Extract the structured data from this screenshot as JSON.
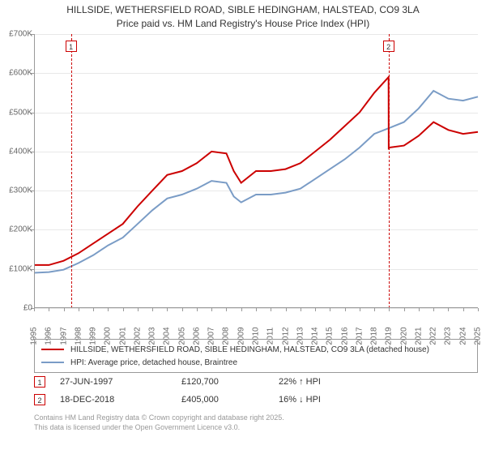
{
  "title": {
    "line1": "HILLSIDE, WETHERSFIELD ROAD, SIBLE HEDINGHAM, HALSTEAD, CO9 3LA",
    "line2": "Price paid vs. HM Land Registry's House Price Index (HPI)"
  },
  "chart": {
    "type": "line",
    "background_color": "#ffffff",
    "grid_color": "#e8e8e8",
    "axis_color": "#999999",
    "label_color": "#666666",
    "label_fontsize": 10,
    "ylim": [
      0,
      700000
    ],
    "ytick_step": 100000,
    "yticks": [
      "£0",
      "£100K",
      "£200K",
      "£300K",
      "£400K",
      "£500K",
      "£600K",
      "£700K"
    ],
    "xlim": [
      1995,
      2025
    ],
    "xticks": [
      "1995",
      "1996",
      "1997",
      "1998",
      "1999",
      "2000",
      "2001",
      "2002",
      "2003",
      "2004",
      "2005",
      "2006",
      "2007",
      "2008",
      "2009",
      "2010",
      "2011",
      "2012",
      "2013",
      "2014",
      "2015",
      "2016",
      "2017",
      "2018",
      "2019",
      "2020",
      "2021",
      "2022",
      "2023",
      "2024",
      "2025"
    ],
    "series": [
      {
        "name": "HILLSIDE, WETHERSFIELD ROAD, SIBLE HEDINGHAM, HALSTEAD, CO9 3LA (detached house)",
        "color": "#cc0000",
        "width": 2,
        "x": [
          1995,
          1996,
          1997,
          1998,
          1999,
          2000,
          2001,
          2002,
          2003,
          2004,
          2005,
          2006,
          2007,
          2008,
          2008.5,
          2009,
          2010,
          2011,
          2012,
          2013,
          2014,
          2015,
          2016,
          2017,
          2018,
          2018.96,
          2018.97,
          2019,
          2020,
          2021,
          2022,
          2023,
          2024,
          2025
        ],
        "y": [
          110000,
          110000,
          120700,
          140000,
          165000,
          190000,
          215000,
          260000,
          300000,
          340000,
          350000,
          370000,
          400000,
          395000,
          350000,
          320000,
          350000,
          350000,
          355000,
          370000,
          400000,
          430000,
          465000,
          500000,
          550000,
          590000,
          405000,
          410000,
          415000,
          440000,
          475000,
          455000,
          445000,
          450000
        ]
      },
      {
        "name": "HPI: Average price, detached house, Braintree",
        "color": "#7a9cc6",
        "width": 2,
        "x": [
          1995,
          1996,
          1997,
          1998,
          1999,
          2000,
          2001,
          2002,
          2003,
          2004,
          2005,
          2006,
          2007,
          2008,
          2008.5,
          2009,
          2010,
          2011,
          2012,
          2013,
          2014,
          2015,
          2016,
          2017,
          2018,
          2019,
          2020,
          2021,
          2022,
          2023,
          2024,
          2025
        ],
        "y": [
          90000,
          92000,
          98000,
          115000,
          135000,
          160000,
          180000,
          215000,
          250000,
          280000,
          290000,
          305000,
          325000,
          320000,
          285000,
          270000,
          290000,
          290000,
          295000,
          305000,
          330000,
          355000,
          380000,
          410000,
          445000,
          460000,
          475000,
          510000,
          555000,
          535000,
          530000,
          540000
        ]
      }
    ],
    "markers": [
      {
        "n": "1",
        "x": 1997.5,
        "color": "#cc0000"
      },
      {
        "n": "2",
        "x": 2018.96,
        "color": "#cc0000"
      }
    ]
  },
  "legend": {
    "items": [
      {
        "label": "HILLSIDE, WETHERSFIELD ROAD, SIBLE HEDINGHAM, HALSTEAD, CO9 3LA (detached house)",
        "color": "#cc0000"
      },
      {
        "label": "HPI: Average price, detached house, Braintree",
        "color": "#7a9cc6"
      }
    ]
  },
  "sales": [
    {
      "n": "1",
      "date": "27-JUN-1997",
      "price": "£120,700",
      "diff": "22% ↑ HPI",
      "color": "#cc0000"
    },
    {
      "n": "2",
      "date": "18-DEC-2018",
      "price": "£405,000",
      "diff": "16% ↓ HPI",
      "color": "#cc0000"
    }
  ],
  "footer": {
    "line1": "Contains HM Land Registry data © Crown copyright and database right 2025.",
    "line2": "This data is licensed under the Open Government Licence v3.0."
  }
}
